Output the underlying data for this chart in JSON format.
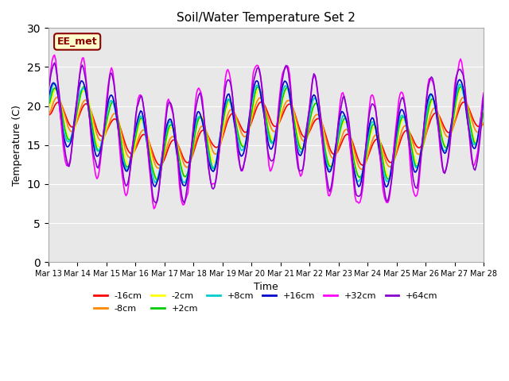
{
  "title": "Soil/Water Temperature Set 2",
  "xlabel": "Time",
  "ylabel": "Temperature (C)",
  "ylim": [
    0,
    30
  ],
  "yticks": [
    0,
    5,
    10,
    15,
    20,
    25,
    30
  ],
  "annotation": "EE_met",
  "bg_color": "#e8e8e8",
  "fig_color": "#ffffff",
  "n_days": 15,
  "x_labels": [
    "Mar 13",
    "Mar 14",
    "Mar 15",
    "Mar 16",
    "Mar 17",
    "Mar 18",
    "Mar 19",
    "Mar 20",
    "Mar 21",
    "Mar 22",
    "Mar 23",
    "Mar 24",
    "Mar 25",
    "Mar 26",
    "Mar 27",
    "Mar 28"
  ],
  "series": [
    {
      "label": "-16cm",
      "color": "#ff0000"
    },
    {
      "label": "-8cm",
      "color": "#ff8800"
    },
    {
      "label": "-2cm",
      "color": "#ffff00"
    },
    {
      "label": "+2cm",
      "color": "#00cc00"
    },
    {
      "label": "+8cm",
      "color": "#00cccc"
    },
    {
      "label": "+16cm",
      "color": "#0000cc"
    },
    {
      "label": "+32cm",
      "color": "#ff00ff"
    },
    {
      "label": "+64cm",
      "color": "#8800cc"
    }
  ]
}
